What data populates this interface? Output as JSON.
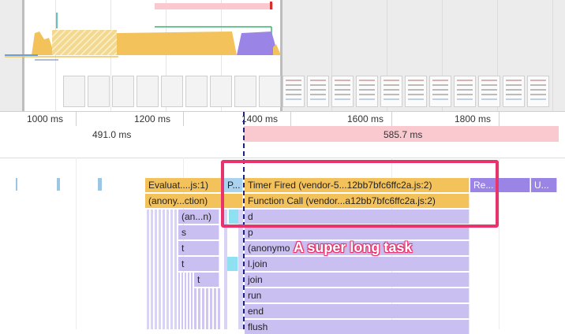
{
  "ruler": {
    "ticks": [
      "1000 ms",
      "1200 ms",
      "1400 ms",
      "1600 ms",
      "1800 ms"
    ],
    "durations": [
      "491.0 ms",
      "585.7 ms"
    ]
  },
  "flame": {
    "row1": [
      "Evaluat....js:1)",
      "P...",
      "Timer Fired (vendor-5...12bb7bfc6ffc2a.js:2)",
      "Re...",
      "U..."
    ],
    "row2": [
      "(anony...ction)",
      "Function Call (vendor...a12bb7bfc6ffc2a.js:2)"
    ],
    "row3": [
      "(an...n)",
      "d"
    ],
    "row4": [
      "s",
      "p"
    ],
    "row5": [
      "t",
      "(anonymo"
    ],
    "row6": [
      "t",
      "l.join"
    ],
    "row7": [
      "t",
      "join"
    ],
    "row8": [
      "run"
    ],
    "row9": [
      "end"
    ],
    "row10": [
      "flush"
    ]
  },
  "annotation": "A super long task",
  "colors": {
    "scripting": "#f4c25b",
    "rendering": "#9a85e6",
    "highlight": "#e8336d",
    "selection": "#f9c9cf"
  }
}
